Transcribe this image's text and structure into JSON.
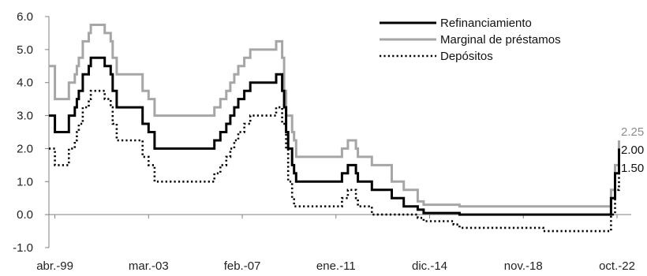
{
  "chart_data": {
    "type": "line",
    "title": "",
    "xlabel": "",
    "ylabel": "",
    "ylim": [
      -1.0,
      6.0
    ],
    "yticks": [
      "6.0",
      "5.0",
      "4.0",
      "3.0",
      "2.0",
      "1.0",
      "0.0",
      "-1.0"
    ],
    "xlim": [
      "1999-01",
      "2022-10"
    ],
    "xticks": [
      {
        "date": "1999-04",
        "label": "abr.-99"
      },
      {
        "date": "2003-03",
        "label": "mar.-03"
      },
      {
        "date": "2007-02",
        "label": "feb.-07"
      },
      {
        "date": "2011-01",
        "label": "ene.-11"
      },
      {
        "date": "2014-12",
        "label": "dic.-14"
      },
      {
        "date": "2018-11",
        "label": "nov.-18"
      },
      {
        "date": "2022-10",
        "label": "oct.-22"
      }
    ],
    "grid": false,
    "legend": "top-right",
    "series": [
      {
        "name": "Refinanciamiento",
        "color": "#000000",
        "style": "solid",
        "end_label": "2.00",
        "points": [
          [
            "1999-01",
            3.0
          ],
          [
            "1999-04",
            2.5
          ],
          [
            "1999-11",
            3.0
          ],
          [
            "2000-02",
            3.25
          ],
          [
            "2000-03",
            3.5
          ],
          [
            "2000-04",
            3.75
          ],
          [
            "2000-06",
            4.25
          ],
          [
            "2000-09",
            4.5
          ],
          [
            "2000-10",
            4.75
          ],
          [
            "2001-05",
            4.5
          ],
          [
            "2001-08",
            4.25
          ],
          [
            "2001-09",
            3.75
          ],
          [
            "2001-11",
            3.25
          ],
          [
            "2002-12",
            2.75
          ],
          [
            "2003-03",
            2.5
          ],
          [
            "2003-06",
            2.0
          ],
          [
            "2005-12",
            2.25
          ],
          [
            "2006-03",
            2.5
          ],
          [
            "2006-06",
            2.75
          ],
          [
            "2006-08",
            3.0
          ],
          [
            "2006-10",
            3.25
          ],
          [
            "2006-12",
            3.5
          ],
          [
            "2007-03",
            3.75
          ],
          [
            "2007-06",
            4.0
          ],
          [
            "2008-07",
            4.25
          ],
          [
            "2008-10",
            3.75
          ],
          [
            "2008-11",
            3.25
          ],
          [
            "2008-12",
            2.5
          ],
          [
            "2009-01",
            2.0
          ],
          [
            "2009-03",
            1.5
          ],
          [
            "2009-04",
            1.25
          ],
          [
            "2009-05",
            1.0
          ],
          [
            "2011-04",
            1.25
          ],
          [
            "2011-07",
            1.5
          ],
          [
            "2011-11",
            1.25
          ],
          [
            "2011-12",
            1.0
          ],
          [
            "2012-07",
            0.75
          ],
          [
            "2013-05",
            0.5
          ],
          [
            "2013-11",
            0.25
          ],
          [
            "2014-06",
            0.15
          ],
          [
            "2014-09",
            0.05
          ],
          [
            "2016-03",
            0.0
          ],
          [
            "2022-07",
            0.5
          ],
          [
            "2022-09",
            1.25
          ],
          [
            "2022-11",
            2.0
          ]
        ]
      },
      {
        "name": "Marginal de préstamos",
        "color": "#a6a6a6",
        "style": "solid",
        "end_label": "2.25",
        "points": [
          [
            "1999-01",
            4.5
          ],
          [
            "1999-04",
            3.5
          ],
          [
            "1999-11",
            4.0
          ],
          [
            "2000-02",
            4.25
          ],
          [
            "2000-03",
            4.5
          ],
          [
            "2000-04",
            4.75
          ],
          [
            "2000-06",
            5.25
          ],
          [
            "2000-09",
            5.5
          ],
          [
            "2000-10",
            5.75
          ],
          [
            "2001-05",
            5.5
          ],
          [
            "2001-08",
            5.25
          ],
          [
            "2001-09",
            4.75
          ],
          [
            "2001-11",
            4.25
          ],
          [
            "2002-12",
            3.75
          ],
          [
            "2003-03",
            3.5
          ],
          [
            "2003-06",
            3.0
          ],
          [
            "2005-12",
            3.25
          ],
          [
            "2006-03",
            3.5
          ],
          [
            "2006-06",
            3.75
          ],
          [
            "2006-08",
            4.0
          ],
          [
            "2006-10",
            4.25
          ],
          [
            "2006-12",
            4.5
          ],
          [
            "2007-03",
            4.75
          ],
          [
            "2007-06",
            5.0
          ],
          [
            "2008-07",
            5.25
          ],
          [
            "2008-10",
            4.75
          ],
          [
            "2008-11",
            3.75
          ],
          [
            "2008-12",
            3.0
          ],
          [
            "2009-01",
            3.0
          ],
          [
            "2009-03",
            2.5
          ],
          [
            "2009-04",
            2.25
          ],
          [
            "2009-05",
            1.75
          ],
          [
            "2011-04",
            2.0
          ],
          [
            "2011-07",
            2.25
          ],
          [
            "2011-11",
            2.0
          ],
          [
            "2011-12",
            1.75
          ],
          [
            "2012-07",
            1.5
          ],
          [
            "2013-05",
            1.0
          ],
          [
            "2013-11",
            0.75
          ],
          [
            "2014-06",
            0.4
          ],
          [
            "2014-09",
            0.3
          ],
          [
            "2016-03",
            0.25
          ],
          [
            "2022-07",
            0.75
          ],
          [
            "2022-09",
            1.5
          ],
          [
            "2022-11",
            2.25
          ]
        ]
      },
      {
        "name": "Depósitos",
        "color": "#000000",
        "style": "dotted",
        "end_label": "1.50",
        "points": [
          [
            "1999-01",
            2.0
          ],
          [
            "1999-04",
            1.5
          ],
          [
            "1999-11",
            2.0
          ],
          [
            "2000-02",
            2.25
          ],
          [
            "2000-03",
            2.5
          ],
          [
            "2000-04",
            2.75
          ],
          [
            "2000-06",
            3.25
          ],
          [
            "2000-09",
            3.5
          ],
          [
            "2000-10",
            3.75
          ],
          [
            "2001-05",
            3.5
          ],
          [
            "2001-08",
            3.25
          ],
          [
            "2001-09",
            2.75
          ],
          [
            "2001-11",
            2.25
          ],
          [
            "2002-12",
            1.75
          ],
          [
            "2003-03",
            1.5
          ],
          [
            "2003-06",
            1.0
          ],
          [
            "2005-12",
            1.25
          ],
          [
            "2006-03",
            1.5
          ],
          [
            "2006-06",
            1.75
          ],
          [
            "2006-08",
            2.0
          ],
          [
            "2006-10",
            2.25
          ],
          [
            "2006-12",
            2.5
          ],
          [
            "2007-03",
            2.75
          ],
          [
            "2007-06",
            3.0
          ],
          [
            "2008-07",
            3.25
          ],
          [
            "2008-10",
            2.75
          ],
          [
            "2008-11",
            2.75
          ],
          [
            "2008-12",
            2.0
          ],
          [
            "2009-01",
            1.0
          ],
          [
            "2009-03",
            0.5
          ],
          [
            "2009-04",
            0.25
          ],
          [
            "2009-05",
            0.25
          ],
          [
            "2011-04",
            0.5
          ],
          [
            "2011-07",
            0.75
          ],
          [
            "2011-11",
            0.5
          ],
          [
            "2011-12",
            0.25
          ],
          [
            "2012-07",
            0.0
          ],
          [
            "2013-05",
            0.0
          ],
          [
            "2013-11",
            0.0
          ],
          [
            "2014-06",
            -0.1
          ],
          [
            "2014-09",
            -0.2
          ],
          [
            "2015-12",
            -0.3
          ],
          [
            "2016-03",
            -0.4
          ],
          [
            "2019-09",
            -0.5
          ],
          [
            "2022-07",
            0.0
          ],
          [
            "2022-09",
            0.75
          ],
          [
            "2022-11",
            1.5
          ]
        ]
      }
    ]
  }
}
